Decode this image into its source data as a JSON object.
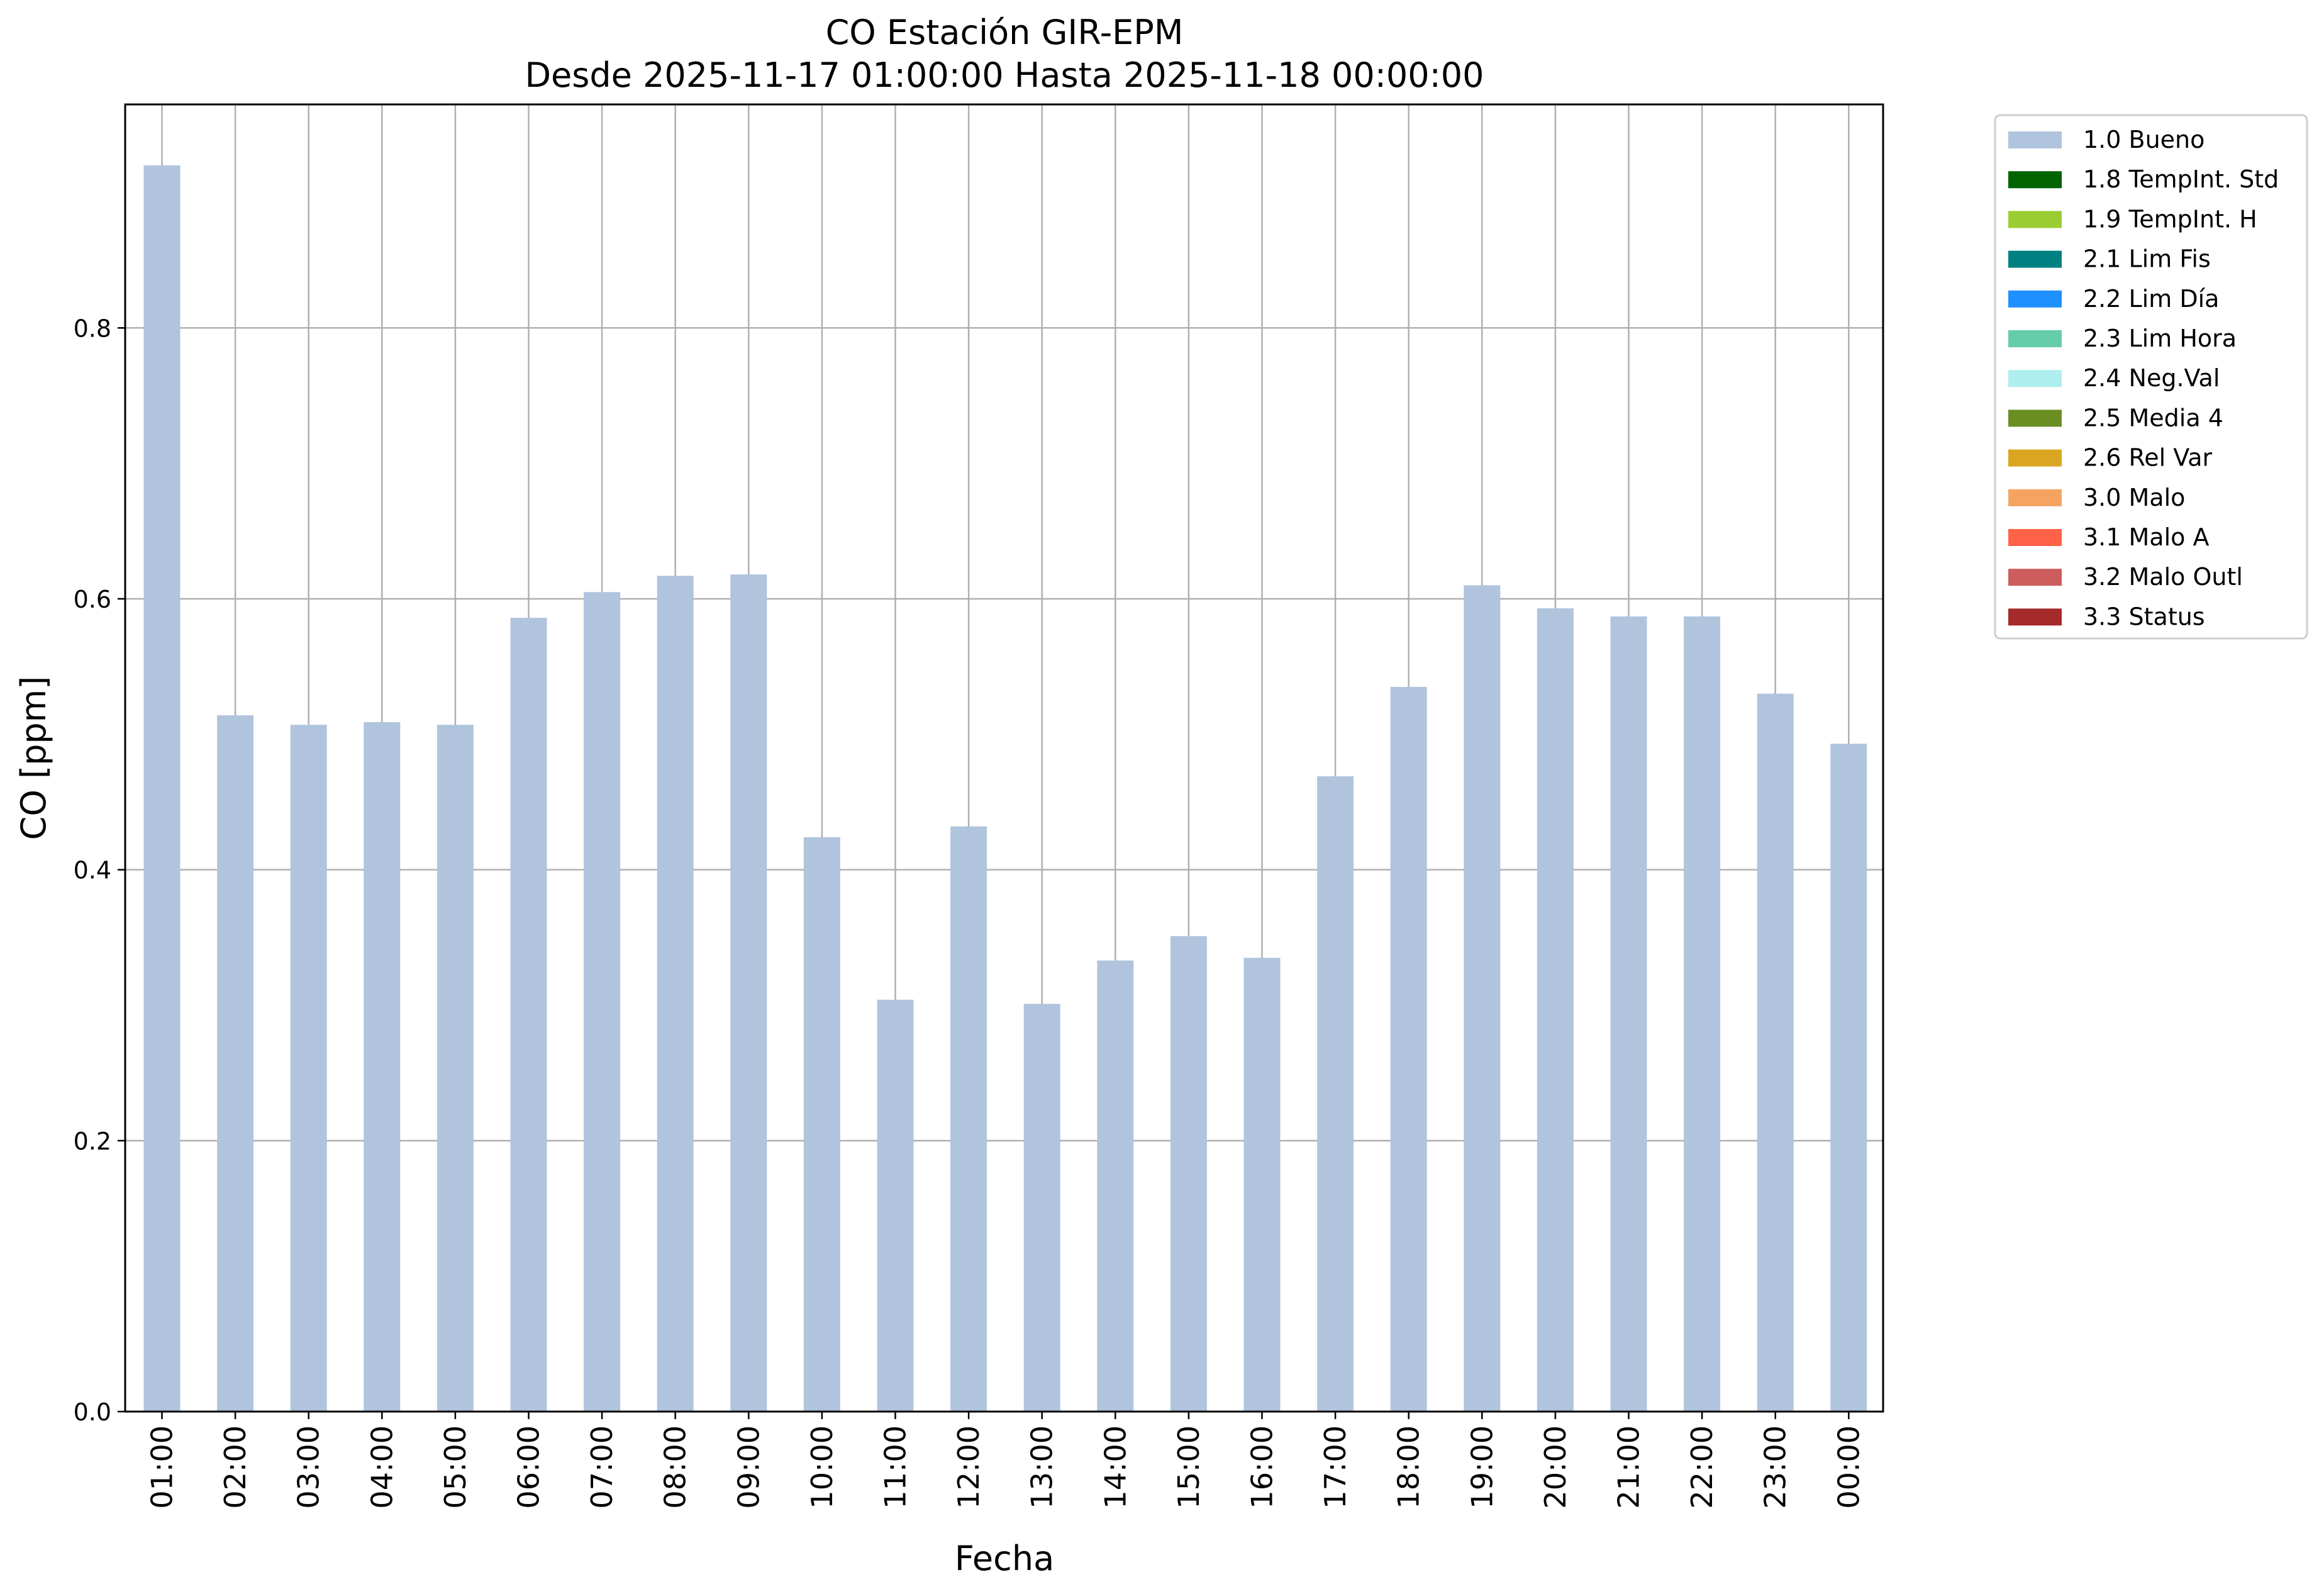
{
  "chart_data": {
    "type": "bar",
    "title": "CO Estación GIR-EPM",
    "subtitle": "Desde 2025-11-17 01:00:00 Hasta 2025-11-18 00:00:00",
    "xlabel": "Fecha",
    "ylabel": "CO [ppm]",
    "ylim": [
      0,
      0.965
    ],
    "yticks": [
      "0.0",
      "0.2",
      "0.4",
      "0.6",
      "0.8"
    ],
    "ytick_values": [
      0.0,
      0.2,
      0.4,
      0.6,
      0.8
    ],
    "grid": true,
    "legend_position": "outside-right-top",
    "categories": [
      "01:00",
      "02:00",
      "03:00",
      "04:00",
      "05:00",
      "06:00",
      "07:00",
      "08:00",
      "09:00",
      "10:00",
      "11:00",
      "12:00",
      "13:00",
      "14:00",
      "15:00",
      "16:00",
      "17:00",
      "18:00",
      "19:00",
      "20:00",
      "21:00",
      "22:00",
      "23:00",
      "00:00"
    ],
    "series": [
      {
        "name": "1.0 Bueno",
        "color": "#b0c4de",
        "values": [
          0.92,
          0.514,
          0.507,
          0.509,
          0.507,
          0.586,
          0.605,
          0.617,
          0.618,
          0.424,
          0.304,
          0.432,
          0.301,
          0.333,
          0.351,
          0.335,
          0.469,
          0.535,
          0.61,
          0.593,
          0.587,
          0.587,
          0.53,
          0.493
        ]
      }
    ],
    "legend": [
      {
        "label": "1.0 Bueno",
        "color": "#b0c4de"
      },
      {
        "label": "1.8 TempInt. Std",
        "color": "#006400"
      },
      {
        "label": "1.9 TempInt. H",
        "color": "#9acd32"
      },
      {
        "label": "2.1 Lim Fis",
        "color": "#008080"
      },
      {
        "label": "2.2 Lim Día",
        "color": "#1e90ff"
      },
      {
        "label": "2.3 Lim Hora",
        "color": "#66cdaa"
      },
      {
        "label": "2.4 Neg.Val",
        "color": "#afeeee"
      },
      {
        "label": "2.5 Media 4",
        "color": "#6b8e23"
      },
      {
        "label": "2.6 Rel Var",
        "color": "#daa520"
      },
      {
        "label": "3.0 Malo",
        "color": "#f4a460"
      },
      {
        "label": "3.1 Malo A",
        "color": "#ff6347"
      },
      {
        "label": "3.2 Malo Outl",
        "color": "#cd5c5c"
      },
      {
        "label": "3.3 Status",
        "color": "#a52a2a"
      }
    ]
  }
}
